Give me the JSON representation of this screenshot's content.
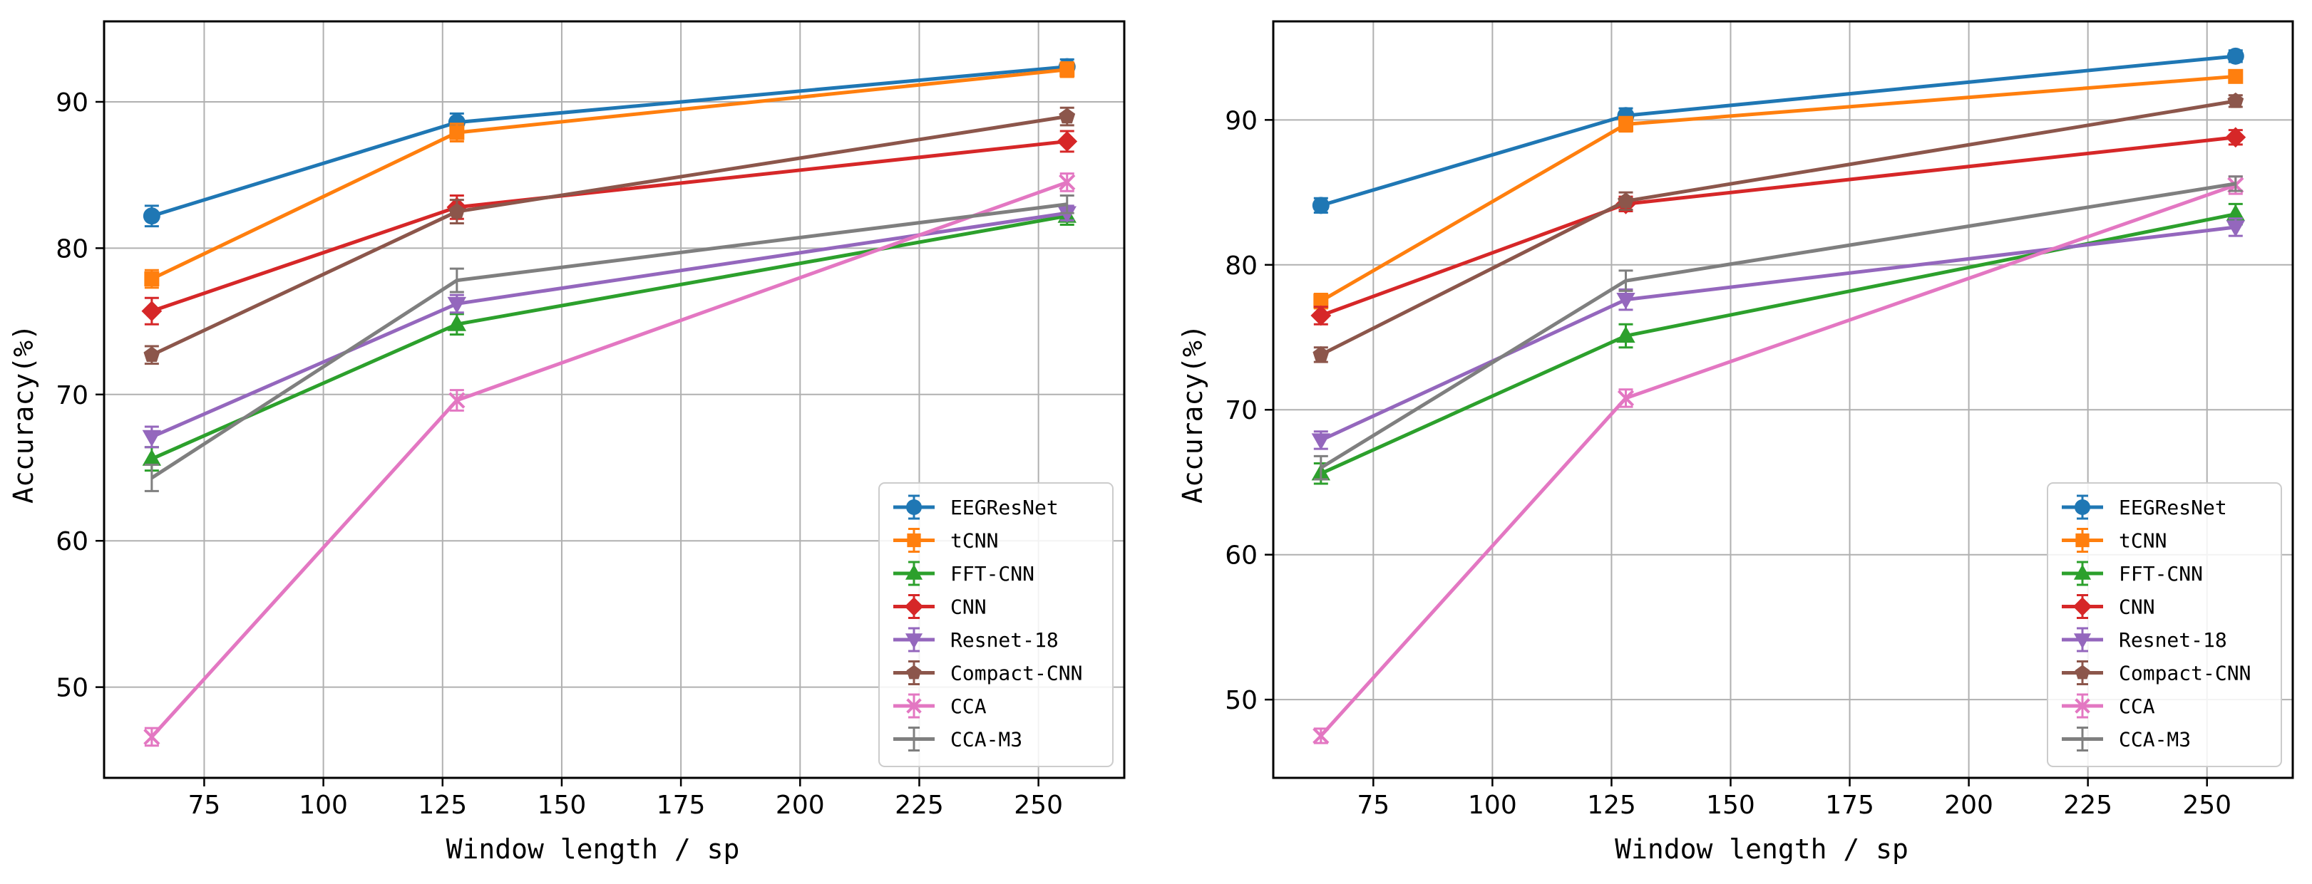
{
  "chart_data": [
    {
      "type": "line",
      "title": "",
      "xlabel": "Window length / sp",
      "ylabel": "Accuracy(%)",
      "xlim": [
        54,
        268
      ],
      "ylim": [
        43.8,
        95.5
      ],
      "xticks": [
        75,
        100,
        125,
        150,
        175,
        200,
        225,
        250
      ],
      "yticks": [
        50,
        60,
        70,
        80,
        90
      ],
      "grid": true,
      "legend_position": "lower-right",
      "x": [
        64,
        128,
        256
      ],
      "series": [
        {
          "name": "EEGResNet",
          "color": "#1f77b4",
          "marker": "circle",
          "values": [
            82.2,
            88.6,
            92.4
          ],
          "errors": [
            0.7,
            0.6,
            0.5
          ]
        },
        {
          "name": "tCNN",
          "color": "#ff7f0e",
          "marker": "square",
          "values": [
            77.9,
            87.9,
            92.2
          ],
          "errors": [
            0.6,
            0.6,
            0.5
          ]
        },
        {
          "name": "FFT-CNN",
          "color": "#2ca02c",
          "marker": "triangle-up",
          "values": [
            65.6,
            74.8,
            82.2
          ],
          "errors": [
            0.8,
            0.7,
            0.6
          ]
        },
        {
          "name": "CNN",
          "color": "#d62728",
          "marker": "diamond",
          "values": [
            75.7,
            82.8,
            87.3
          ],
          "errors": [
            0.9,
            0.8,
            0.7
          ]
        },
        {
          "name": "Resnet-18",
          "color": "#9467bd",
          "marker": "triangle-down",
          "values": [
            67.1,
            76.2,
            82.4
          ],
          "errors": [
            0.7,
            0.6,
            0.5
          ]
        },
        {
          "name": "Compact-CNN",
          "color": "#8c564b",
          "marker": "pentagon",
          "values": [
            72.7,
            82.5,
            89.0
          ],
          "errors": [
            0.6,
            0.8,
            0.6
          ]
        },
        {
          "name": "CCA",
          "color": "#e377c2",
          "marker": "x",
          "values": [
            46.6,
            69.6,
            84.5
          ],
          "errors": [
            0.6,
            0.7,
            0.6
          ]
        },
        {
          "name": "CCA-M3",
          "color": "#7f7f7f",
          "marker": "none",
          "values": [
            64.3,
            77.8,
            83.0
          ],
          "errors": [
            0.9,
            0.8,
            0.6
          ]
        }
      ]
    },
    {
      "type": "line",
      "title": "",
      "xlabel": "Window length / sp",
      "ylabel": "Accuracy(%)",
      "xlim": [
        54,
        268
      ],
      "ylim": [
        44.6,
        96.8
      ],
      "xticks": [
        75,
        100,
        125,
        150,
        175,
        200,
        225,
        250
      ],
      "yticks": [
        50,
        60,
        70,
        80,
        90
      ],
      "grid": true,
      "legend_position": "lower-right",
      "x": [
        64,
        128,
        256
      ],
      "series": [
        {
          "name": "EEGResNet",
          "color": "#1f77b4",
          "marker": "circle",
          "values": [
            84.1,
            90.3,
            94.4
          ],
          "errors": [
            0.5,
            0.5,
            0.4
          ]
        },
        {
          "name": "tCNN",
          "color": "#ff7f0e",
          "marker": "square",
          "values": [
            77.5,
            89.7,
            93.0
          ],
          "errors": [
            0.5,
            0.5,
            0.4
          ]
        },
        {
          "name": "FFT-CNN",
          "color": "#2ca02c",
          "marker": "triangle-up",
          "values": [
            65.6,
            75.1,
            83.5
          ],
          "errors": [
            0.7,
            0.8,
            0.7
          ]
        },
        {
          "name": "CNN",
          "color": "#d62728",
          "marker": "diamond",
          "values": [
            76.5,
            84.2,
            88.8
          ],
          "errors": [
            0.6,
            0.5,
            0.5
          ]
        },
        {
          "name": "Resnet-18",
          "color": "#9467bd",
          "marker": "triangle-down",
          "values": [
            67.9,
            77.6,
            82.6
          ],
          "errors": [
            0.6,
            0.7,
            0.6
          ]
        },
        {
          "name": "Compact-CNN",
          "color": "#8c564b",
          "marker": "pentagon",
          "values": [
            73.8,
            84.4,
            91.3
          ],
          "errors": [
            0.5,
            0.6,
            0.4
          ]
        },
        {
          "name": "CCA",
          "color": "#e377c2",
          "marker": "x",
          "values": [
            47.5,
            70.8,
            85.5
          ],
          "errors": [
            0.5,
            0.6,
            0.6
          ]
        },
        {
          "name": "CCA-M3",
          "color": "#7f7f7f",
          "marker": "none",
          "values": [
            66.0,
            78.9,
            85.6
          ],
          "errors": [
            0.8,
            0.7,
            0.5
          ]
        }
      ]
    }
  ]
}
